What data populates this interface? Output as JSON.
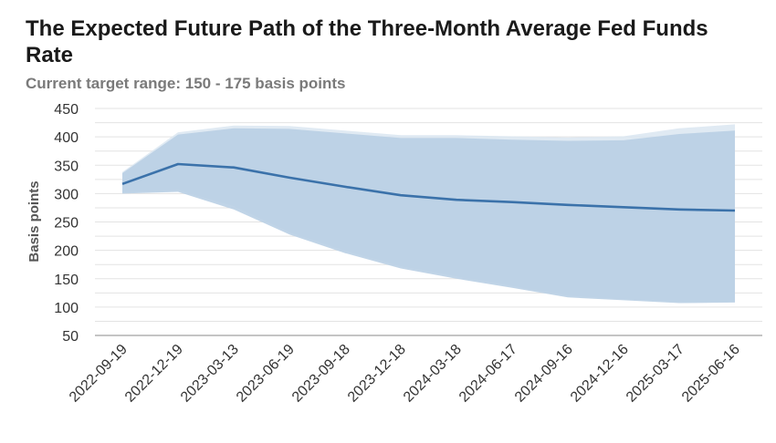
{
  "chart_data": {
    "type": "area",
    "title": "The Expected Future Path of the Three-Month Average Fed Funds Rate",
    "subtitle": "Current target range: 150 - 175 basis points",
    "xlabel": "",
    "ylabel": "Basis points",
    "ylim": [
      50,
      450
    ],
    "yticks": [
      50,
      100,
      150,
      200,
      250,
      300,
      350,
      400,
      450
    ],
    "grid": true,
    "categories": [
      "2022-09-19",
      "2022-12-19",
      "2023-03-13",
      "2023-06-19",
      "2023-09-18",
      "2023-12-18",
      "2024-03-18",
      "2024-06-17",
      "2024-09-16",
      "2024-12-16",
      "2025-03-17",
      "2025-06-16"
    ],
    "series": [
      {
        "type": "line",
        "values": [
          317,
          352,
          346,
          328,
          312,
          297,
          289,
          285,
          280,
          276,
          272,
          270
        ]
      },
      {
        "type": "band",
        "lower": [
          300,
          303,
          272,
          228,
          195,
          168,
          150,
          134,
          117,
          112,
          107,
          108
        ],
        "upper": [
          336,
          404,
          415,
          414,
          406,
          398,
          398,
          395,
          393,
          394,
          405,
          411
        ]
      },
      {
        "type": "band",
        "lower": [
          302,
          306,
          278,
          232,
          199,
          172,
          154,
          137,
          120,
          114,
          110,
          110
        ],
        "upper": [
          338,
          408,
          420,
          419,
          411,
          403,
          403,
          401,
          399,
          401,
          415,
          422
        ]
      }
    ],
    "colors": {
      "line": "#3b72aa",
      "band_inner": "#b9cfe4",
      "band_outer": "#dbe6f1",
      "grid": "#e3e3e3"
    }
  }
}
